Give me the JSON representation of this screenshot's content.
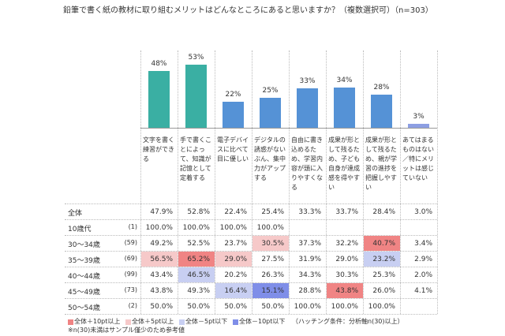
{
  "chart_data": {
    "type": "bar",
    "title": "鉛筆で書く紙の教材に取り組むメリットはどんなところにあると思いますか？（複数選択可）（n=303）",
    "categories": [
      "文字を書く練習ができる",
      "手で書くことによって、知識が記憶として定着する",
      "電子デバイスに比べて目に優しい",
      "デジタルの誘惑がないぶん、集中力がアップする",
      "自由に書き込めるため、学習内容が頭に入りやすくなる",
      "成果が形として残るため、子ども自身が達成感を得やすい",
      "成果が形として残るため、親が学習の進捗を把握しやすい",
      "あてはまるものはない／特にメリットは感じていない"
    ],
    "values": [
      48,
      53,
      22,
      25,
      33,
      34,
      28,
      3
    ],
    "value_labels": [
      "48%",
      "53%",
      "22%",
      "25%",
      "33%",
      "34%",
      "28%",
      "3%"
    ],
    "colors": [
      "#3aafa3",
      "#3aafa3",
      "#5592d6",
      "#5592d6",
      "#5592d6",
      "#5592d6",
      "#5592d6",
      "#8d9fe3"
    ]
  },
  "table": {
    "rows": [
      {
        "label": "全体",
        "n": null,
        "values": [
          "47.9%",
          "52.8%",
          "22.4%",
          "25.4%",
          "33.3%",
          "33.7%",
          "28.4%",
          "3.0%"
        ],
        "shades": [
          null,
          null,
          null,
          null,
          null,
          null,
          null,
          null
        ]
      },
      {
        "label": "10歳代",
        "n": "(1)",
        "values": [
          "100.0%",
          "100.0%",
          "100.0%",
          "100.0%",
          null,
          null,
          null,
          null
        ],
        "shades": [
          null,
          null,
          null,
          null,
          null,
          null,
          null,
          null
        ]
      },
      {
        "label": "30～34歳",
        "n": "(59)",
        "values": [
          "49.2%",
          "52.5%",
          "23.7%",
          "30.5%",
          "37.3%",
          "32.2%",
          "40.7%",
          "3.4%"
        ],
        "shades": [
          null,
          null,
          null,
          "#f6c9c9",
          null,
          null,
          "#f08484",
          null
        ]
      },
      {
        "label": "35～39歳",
        "n": "(69)",
        "values": [
          "56.5%",
          "65.2%",
          "29.0%",
          "27.5%",
          "31.9%",
          "29.0%",
          "23.2%",
          "2.9%"
        ],
        "shades": [
          "#f6c9c9",
          "#f08484",
          "#f6c9c9",
          null,
          null,
          null,
          "#c8cff2",
          null
        ]
      },
      {
        "label": "40～44歳",
        "n": "(99)",
        "values": [
          "43.4%",
          "46.5%",
          "20.2%",
          "26.3%",
          "34.3%",
          "30.3%",
          "25.3%",
          "2.0%"
        ],
        "shades": [
          null,
          "#c8cff2",
          null,
          null,
          null,
          null,
          null,
          null
        ]
      },
      {
        "label": "45～49歳",
        "n": "(73)",
        "values": [
          "43.8%",
          "49.3%",
          "16.4%",
          "15.1%",
          "28.8%",
          "43.8%",
          "26.0%",
          "4.1%"
        ],
        "shades": [
          null,
          null,
          "#c8cff2",
          "#7f8ee8",
          null,
          "#f08484",
          null,
          null
        ]
      },
      {
        "label": "50～54歳",
        "n": "(2)",
        "values": [
          "50.0%",
          "50.0%",
          "50.0%",
          "50.0%",
          "100.0%",
          "100.0%",
          "100.0%",
          null
        ],
        "shades": [
          null,
          null,
          null,
          null,
          null,
          null,
          null,
          null
        ]
      }
    ]
  },
  "legend": [
    {
      "label": "全体＋10pt以上",
      "color": "#f08484"
    },
    {
      "label": "全体＋5pt以上",
      "color": "#f6c9c9"
    },
    {
      "label": "全体－5pt以下",
      "color": "#c8cff2"
    },
    {
      "label": "全体－10pt以下",
      "color": "#7f8ee8"
    }
  ],
  "condition": "（ハッチング条件：分析軸n(30)以上）",
  "note": "※n(30)未満はサンプル僅少のため参考値"
}
